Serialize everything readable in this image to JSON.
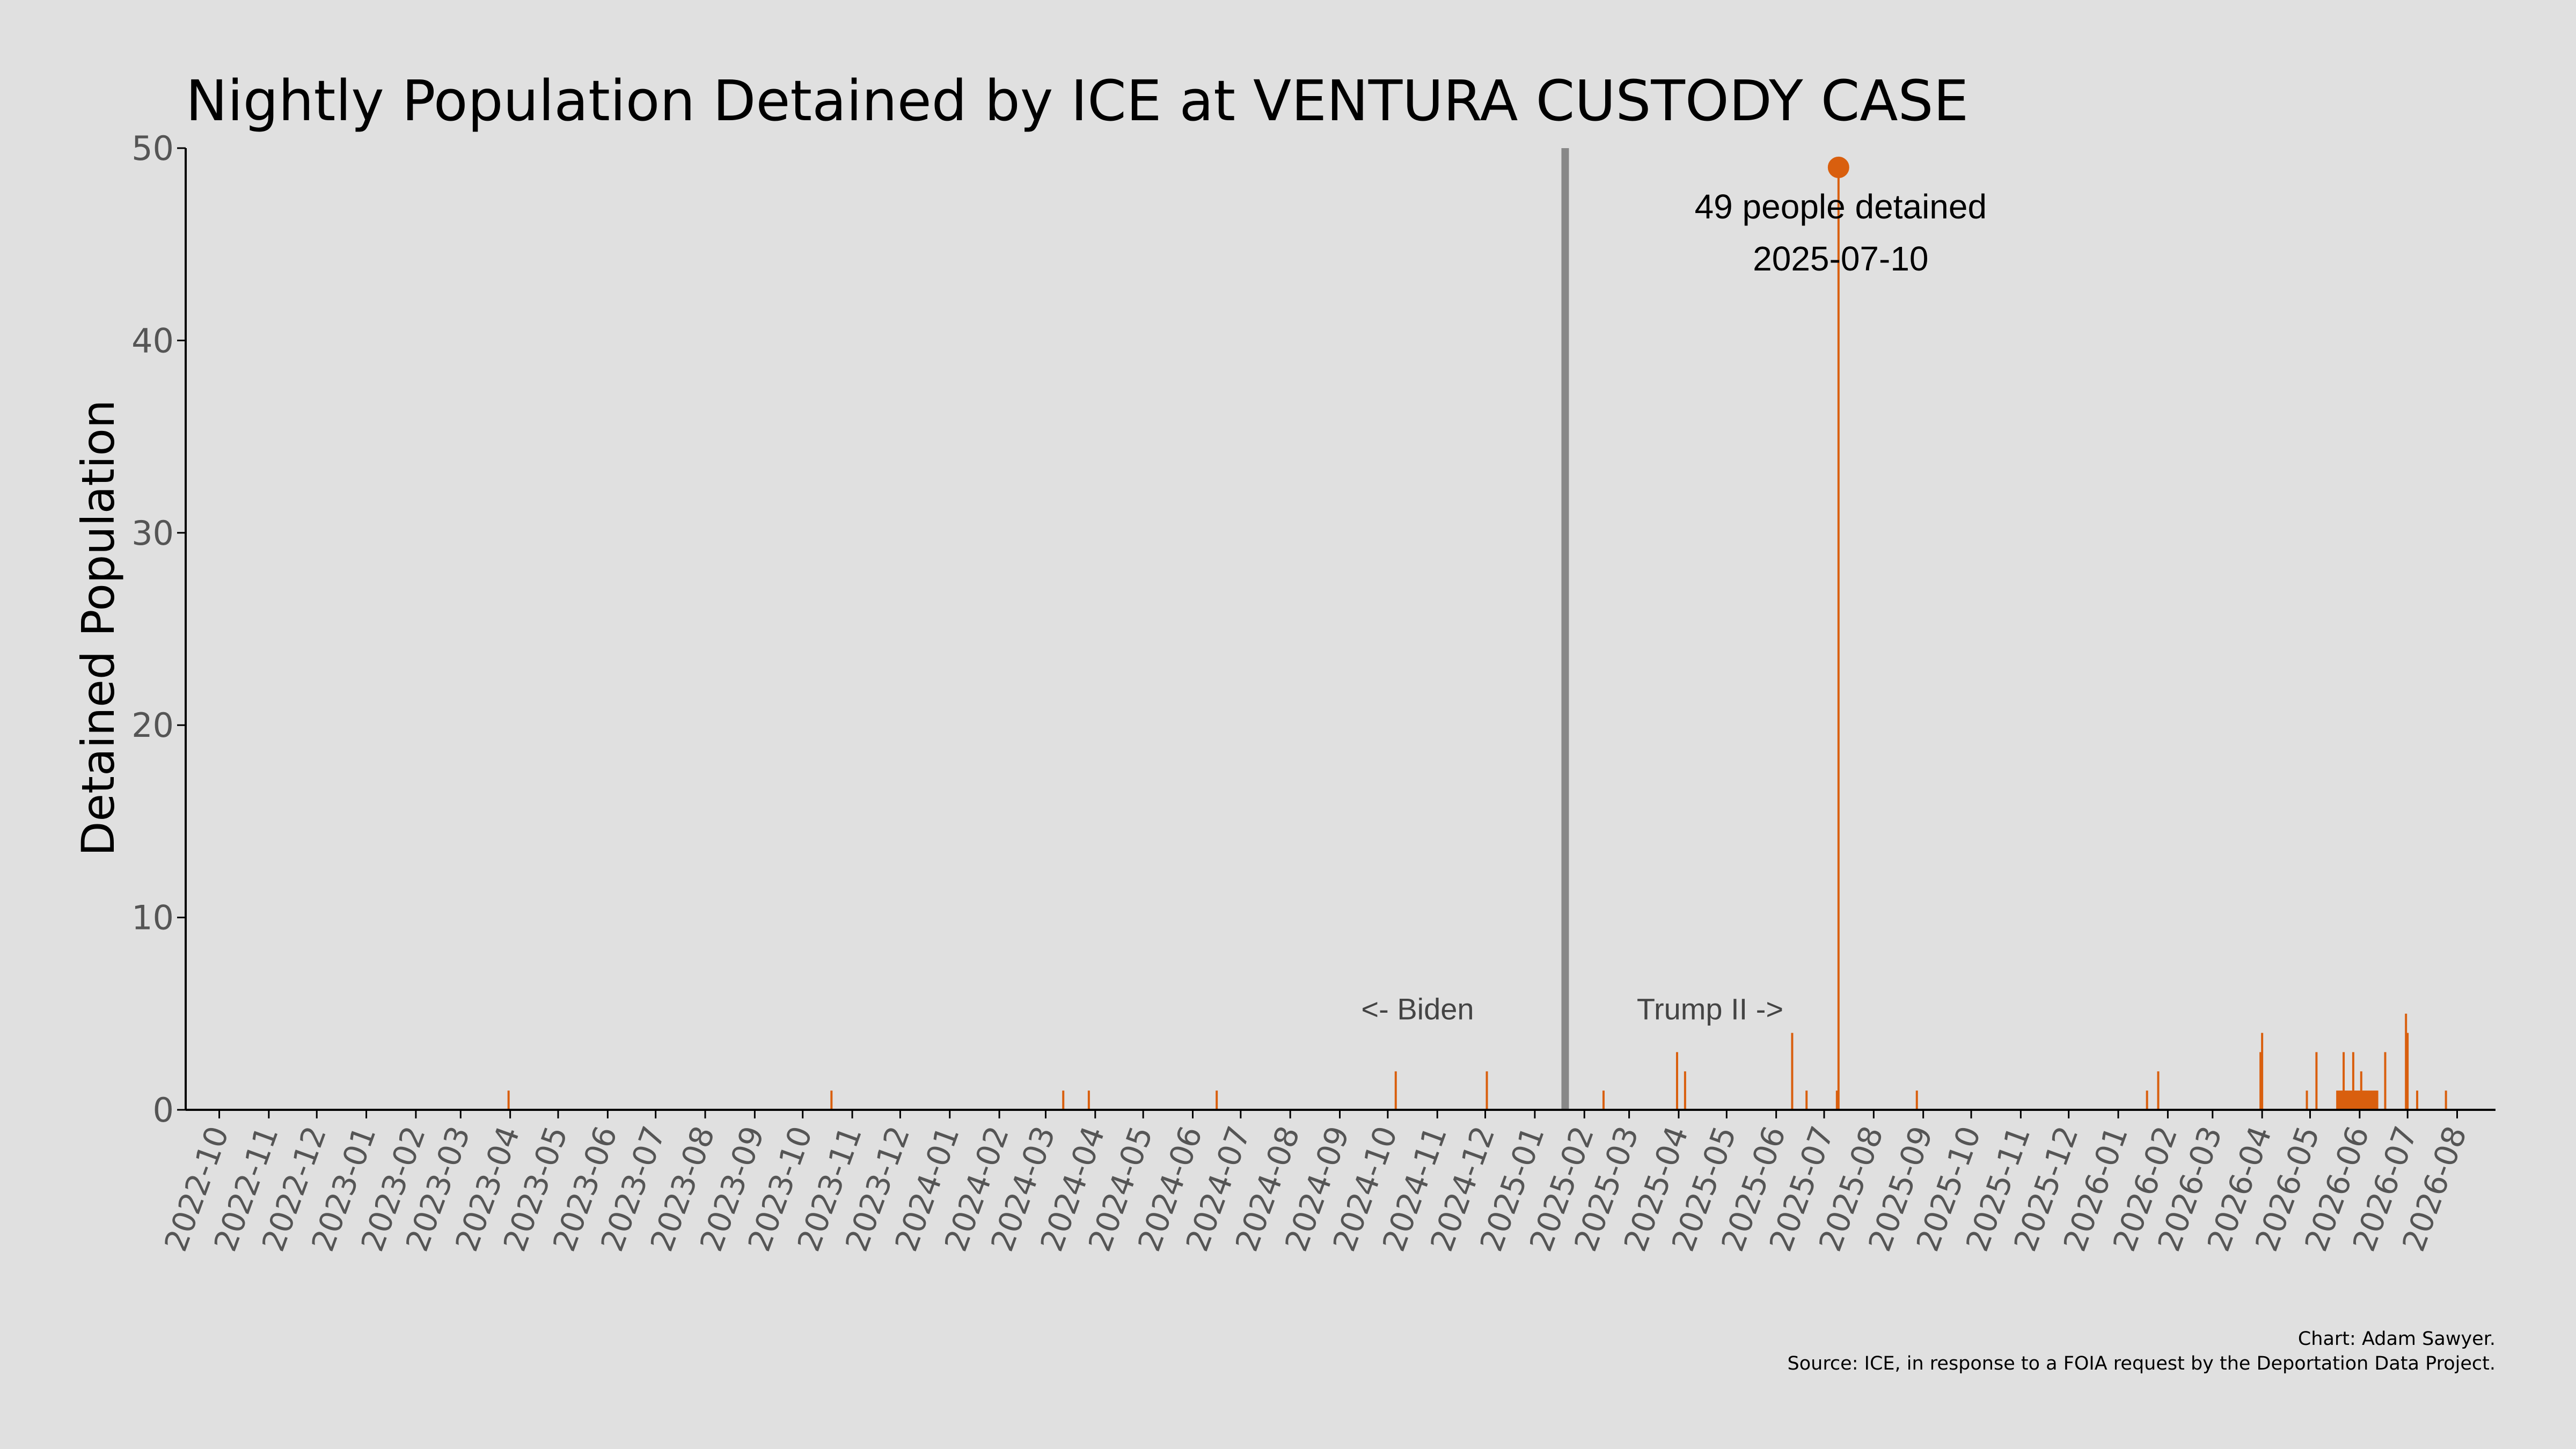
{
  "chart_data": {
    "type": "bar",
    "title": "Nightly Population Detained by ICE at VENTURA CUSTODY CASE",
    "xlabel": "",
    "ylabel": "Detained Population",
    "ylim": [
      0,
      50
    ],
    "yticks": [
      0,
      10,
      20,
      30,
      40,
      50
    ],
    "xlim": [
      "2022-09-10",
      "2026-08-25"
    ],
    "xticks": [
      "2022-10",
      "2022-11",
      "2022-12",
      "2023-01",
      "2023-02",
      "2023-03",
      "2023-04",
      "2023-05",
      "2023-06",
      "2023-07",
      "2023-08",
      "2023-09",
      "2023-10",
      "2023-11",
      "2023-12",
      "2024-01",
      "2024-02",
      "2024-03",
      "2024-04",
      "2024-05",
      "2024-06",
      "2024-07",
      "2024-08",
      "2024-09",
      "2024-10",
      "2024-11",
      "2024-12",
      "2025-01",
      "2025-02",
      "2025-03",
      "2025-04",
      "2025-05",
      "2025-06",
      "2025-07",
      "2025-08",
      "2025-09",
      "2025-10",
      "2025-11",
      "2025-12",
      "2026-01",
      "2026-02",
      "2026-03",
      "2026-04",
      "2026-05",
      "2026-06",
      "2026-07",
      "2026-08"
    ],
    "grid": false,
    "bar_color": "#d95f0e",
    "series": [
      {
        "x": [
          "2023-03-31",
          "2023-10-19",
          "2024-03-12",
          "2024-03-28",
          "2024-06-16",
          "2024-10-06",
          "2024-12-02",
          "2025-02-13",
          "2025-03-31",
          "2025-04-05",
          "2025-06-11",
          "2025-06-20",
          "2025-07-09",
          "2025-07-10",
          "2025-08-28",
          "2026-01-19",
          "2026-01-26",
          "2026-03-31",
          "2026-04-01",
          "2026-04-29",
          "2026-05-05",
          "2026-05-18",
          "2026-05-19",
          "2026-05-20",
          "2026-05-21",
          "2026-05-22",
          "2026-05-23",
          "2026-05-24",
          "2026-05-25",
          "2026-05-26",
          "2026-05-27",
          "2026-05-28",
          "2026-05-29",
          "2026-05-30",
          "2026-05-31",
          "2026-06-01",
          "2026-06-02",
          "2026-06-03",
          "2026-06-04",
          "2026-06-05",
          "2026-06-06",
          "2026-06-07",
          "2026-06-08",
          "2026-06-09",
          "2026-06-10",
          "2026-06-11",
          "2026-06-12",
          "2026-06-17",
          "2026-06-30",
          "2026-07-01",
          "2026-07-07",
          "2026-07-25"
        ],
        "values": [
          1,
          1,
          1,
          1,
          1,
          2,
          2,
          1,
          3,
          2,
          4,
          1,
          1,
          49,
          1,
          1,
          2,
          3,
          4,
          1,
          3,
          1,
          1,
          1,
          1,
          3,
          1,
          1,
          1,
          1,
          1,
          3,
          1,
          1,
          1,
          1,
          2,
          1,
          1,
          1,
          1,
          1,
          1,
          1,
          1,
          1,
          1,
          3,
          5,
          4,
          1,
          1
        ]
      }
    ],
    "vline": {
      "date": "2025-01-20",
      "color": "#888888"
    },
    "era_labels": [
      "<- Biden",
      "Trump II ->"
    ],
    "annotation": {
      "date": "2025-07-10",
      "value": 49,
      "line1": "49 people detained",
      "line2": "2025-07-10"
    }
  },
  "credits": {
    "line1": "Chart: Adam Sawyer.",
    "line2": "Source: ICE, in response to a FOIA request by the Deportation Data Project."
  }
}
